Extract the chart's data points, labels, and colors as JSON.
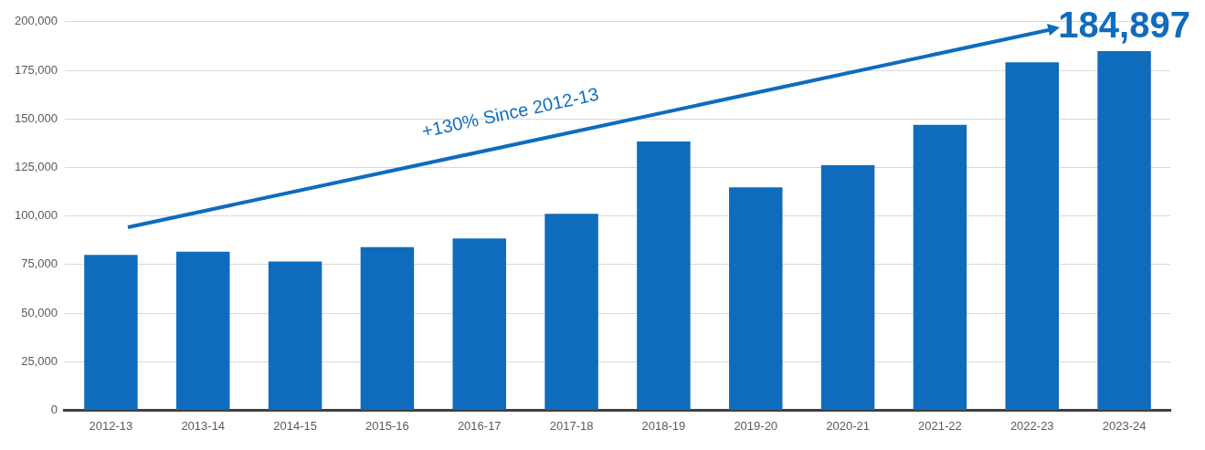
{
  "chart_data": {
    "type": "bar",
    "categories": [
      "2012-13",
      "2013-14",
      "2014-15",
      "2015-16",
      "2016-17",
      "2017-18",
      "2018-19",
      "2019-20",
      "2020-21",
      "2021-22",
      "2022-23",
      "2023-24"
    ],
    "values": [
      80000,
      81600,
      76600,
      83900,
      88400,
      101100,
      138300,
      114700,
      126100,
      146900,
      179100,
      184897
    ],
    "color": "#0f6cbd",
    "value_labels": [
      null,
      null,
      null,
      null,
      null,
      null,
      null,
      null,
      null,
      null,
      null,
      "184,897"
    ],
    "ylim": [
      0,
      200000
    ],
    "yticks": [
      {
        "value": 0,
        "label": "0"
      },
      {
        "value": 25000,
        "label": "25,000"
      },
      {
        "value": 50000,
        "label": "50,000"
      },
      {
        "value": 75000,
        "label": "75,000"
      },
      {
        "value": 100000,
        "label": "100,000"
      },
      {
        "value": 125000,
        "label": "125,000"
      },
      {
        "value": 150000,
        "label": "150,000"
      },
      {
        "value": 175000,
        "label": "175,000"
      },
      {
        "value": 200000,
        "label": "200,000"
      }
    ],
    "grid": "y",
    "legend": false,
    "annotations": [
      "+130% Since 2012-13"
    ]
  }
}
